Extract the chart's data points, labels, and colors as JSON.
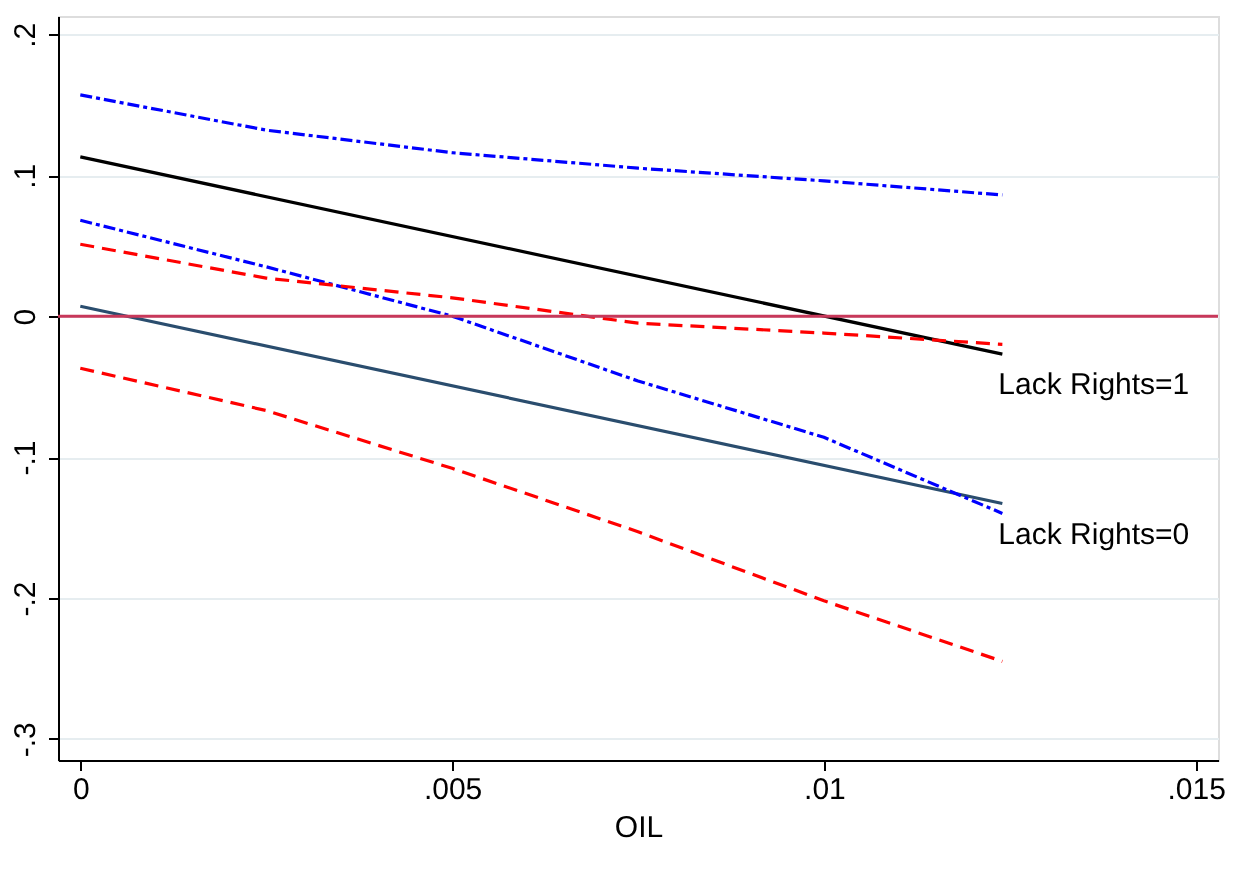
{
  "chart_data": {
    "type": "line",
    "xlabel": "OIL",
    "xlim": [
      -0.0003,
      0.0153
    ],
    "ylim": [
      -0.315,
      0.213
    ],
    "xticks": [
      {
        "value": 0,
        "label": "0"
      },
      {
        "value": 0.005,
        "label": ".005"
      },
      {
        "value": 0.01,
        "label": ".01"
      },
      {
        "value": 0.015,
        "label": ".015"
      }
    ],
    "yticks": [
      {
        "value": -0.3,
        "label": "-.3"
      },
      {
        "value": -0.2,
        "label": "-.2"
      },
      {
        "value": -0.1,
        "label": "-.1"
      },
      {
        "value": 0,
        "label": "0"
      },
      {
        "value": 0.1,
        "label": ".1"
      },
      {
        "value": 0.2,
        "label": ".2"
      }
    ],
    "grid": "y",
    "legend": false,
    "marker": "none",
    "series": [
      {
        "name": "Lack Rights=1",
        "color": "#000000",
        "line_style": "solid",
        "x": [
          0,
          0.0124
        ],
        "values": [
          0.113,
          -0.027
        ]
      },
      {
        "name": "Lack Rights=0",
        "color": "#2a4d6e",
        "line_style": "solid",
        "x": [
          0,
          0.0124
        ],
        "values": [
          0.007,
          -0.133
        ]
      },
      {
        "color": "#0000ff",
        "line_style": "dotted",
        "x": [
          0,
          0.0025,
          0.005,
          0.0075,
          0.01,
          0.0124
        ],
        "values": [
          0.157,
          0.132,
          0.116,
          0.105,
          0.096,
          0.086
        ]
      },
      {
        "color": "#0000ff",
        "line_style": "dotted",
        "x": [
          0,
          0.0025,
          0.005,
          0.0075,
          0.01,
          0.0124
        ],
        "values": [
          0.068,
          0.035,
          0.0,
          -0.046,
          -0.086,
          -0.14
        ]
      },
      {
        "color": "#ff0000",
        "line_style": "dashed",
        "x": [
          0,
          0.0025,
          0.005,
          0.0075,
          0.01,
          0.0124
        ],
        "values": [
          0.051,
          0.027,
          0.013,
          -0.005,
          -0.012,
          -0.02
        ]
      },
      {
        "color": "#ff0000",
        "line_style": "dashed",
        "x": [
          0,
          0.0025,
          0.005,
          0.0075,
          0.01,
          0.0124
        ],
        "values": [
          -0.037,
          -0.067,
          -0.108,
          -0.153,
          -0.202,
          -0.245
        ]
      }
    ],
    "ref_lines": [
      {
        "axis": "y",
        "value": 0,
        "color": "#c8385a"
      }
    ]
  }
}
